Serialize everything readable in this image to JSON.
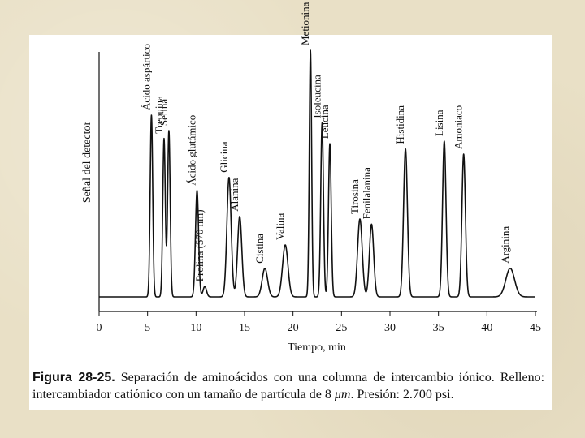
{
  "chart_data": {
    "type": "line",
    "xlabel": "Tiempo, min",
    "ylabel": "Señal del detector",
    "xlim": [
      0,
      45
    ],
    "x_ticks": [
      0,
      5,
      10,
      15,
      20,
      25,
      30,
      35,
      40,
      45
    ],
    "grid": false,
    "baseline": 0.05,
    "peaks": [
      {
        "label": "Ácido aspártico",
        "t": 5.4,
        "h": 0.7,
        "w": 0.13
      },
      {
        "label": "Treonina",
        "t": 6.7,
        "h": 0.61,
        "w": 0.13
      },
      {
        "label": "Serina",
        "t": 7.2,
        "h": 0.64,
        "w": 0.13
      },
      {
        "label": "Ácido glutámico",
        "t": 10.1,
        "h": 0.41,
        "w": 0.16
      },
      {
        "label": "Prolina (570 nm)",
        "t": 10.9,
        "h": 0.04,
        "w": 0.18
      },
      {
        "label": "Glicina",
        "t": 13.4,
        "h": 0.46,
        "w": 0.22
      },
      {
        "label": "Alanina",
        "t": 14.5,
        "h": 0.31,
        "w": 0.22
      },
      {
        "label": "Cistina",
        "t": 17.1,
        "h": 0.11,
        "w": 0.28
      },
      {
        "label": "Valina",
        "t": 19.2,
        "h": 0.2,
        "w": 0.28
      },
      {
        "label": "Metionina",
        "t": 21.8,
        "h": 0.95,
        "w": 0.12
      },
      {
        "label": "Isoleucina",
        "t": 23.0,
        "h": 0.67,
        "w": 0.14
      },
      {
        "label": "Leucina",
        "t": 23.8,
        "h": 0.59,
        "w": 0.14
      },
      {
        "label": "Tirosina",
        "t": 26.9,
        "h": 0.3,
        "w": 0.24
      },
      {
        "label": "Fenilalanina",
        "t": 28.1,
        "h": 0.28,
        "w": 0.22
      },
      {
        "label": "Histidina",
        "t": 31.6,
        "h": 0.57,
        "w": 0.2
      },
      {
        "label": "Lisina",
        "t": 35.6,
        "h": 0.6,
        "w": 0.18
      },
      {
        "label": "Amoniaco",
        "t": 37.6,
        "h": 0.55,
        "w": 0.18
      },
      {
        "label": "Arginina",
        "t": 42.4,
        "h": 0.11,
        "w": 0.45
      }
    ]
  },
  "caption": {
    "figure_label": "Figura 28-25.",
    "text_part1": "Separación de aminoácidos con una columna de intercambio iónico. Relleno: intercambiador catiónico con un tamaño de partícula de 8 ",
    "unit": "μm",
    "text_part2": ". Presión: 2.700 psi."
  }
}
